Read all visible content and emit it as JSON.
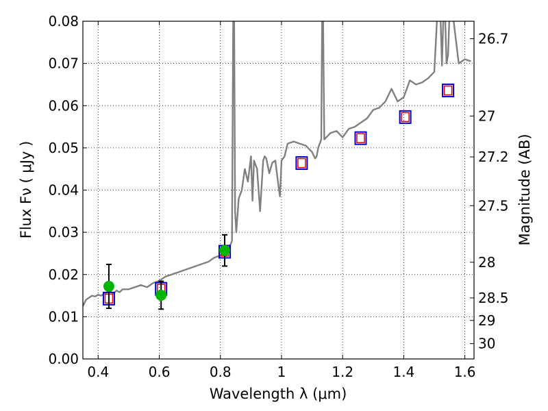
{
  "chart_data": {
    "type": "scatter",
    "xlabel": "Wavelength  λ (μm)",
    "ylabel": "Flux  Fν  ( μJy )",
    "y2label": "Magnitude (AB)",
    "xlim": [
      0.35,
      1.63
    ],
    "ylim": [
      0.0,
      0.08
    ],
    "grid": true,
    "x_ticks": [
      0.4,
      0.6,
      0.8,
      1.0,
      1.2,
      1.4,
      1.6
    ],
    "x_tick_labels": [
      "0.4",
      "0.6",
      "0.8",
      "1",
      "1.2",
      "1.4",
      "1.6"
    ],
    "y_ticks": [
      0.0,
      0.01,
      0.02,
      0.03,
      0.04,
      0.05,
      0.06,
      0.07,
      0.08
    ],
    "y_tick_labels": [
      "0.00",
      "0.01",
      "0.02",
      "0.03",
      "0.04",
      "0.05",
      "0.06",
      "0.07",
      "0.08"
    ],
    "y2_ticks": [
      26.7,
      27,
      27.2,
      27.5,
      28,
      28.5,
      29,
      30
    ],
    "y2_tick_labels": [
      "26.7",
      "27",
      "27.2",
      "27.5",
      "28",
      "28.5",
      "29",
      "30"
    ],
    "colors": {
      "model": "#808080",
      "observed": "#00b400",
      "model_phot_outer": "#0000cc",
      "model_phot_inner": "#dd0000",
      "errorbar": "#000000"
    },
    "series": [
      {
        "kind": "line",
        "x": [
          0.35,
          0.36,
          0.37,
          0.38,
          0.39,
          0.4,
          0.41,
          0.42,
          0.43,
          0.44,
          0.45,
          0.46,
          0.47,
          0.48,
          0.5,
          0.52,
          0.54,
          0.56,
          0.58,
          0.6,
          0.62,
          0.64,
          0.66,
          0.68,
          0.7,
          0.72,
          0.74,
          0.76,
          0.78,
          0.8,
          0.81,
          0.82,
          0.83,
          0.838,
          0.842,
          0.845,
          0.848,
          0.852,
          0.86,
          0.87,
          0.88,
          0.89,
          0.9,
          0.905,
          0.91,
          0.92,
          0.93,
          0.94,
          0.945,
          0.95,
          0.96,
          0.97,
          0.98,
          0.99,
          0.995,
          1.0,
          1.01,
          1.02,
          1.04,
          1.06,
          1.08,
          1.1,
          1.11,
          1.115,
          1.12,
          1.13,
          1.133,
          1.136,
          1.14,
          1.16,
          1.18,
          1.2,
          1.22,
          1.24,
          1.26,
          1.28,
          1.3,
          1.32,
          1.34,
          1.36,
          1.38,
          1.4,
          1.42,
          1.44,
          1.46,
          1.48,
          1.5,
          1.51,
          1.52,
          1.525,
          1.53,
          1.535,
          1.54,
          1.545,
          1.55,
          1.56,
          1.58,
          1.6,
          1.62
        ],
        "y": [
          0.0125,
          0.014,
          0.0145,
          0.015,
          0.0148,
          0.0152,
          0.015,
          0.0155,
          0.0158,
          0.016,
          0.0155,
          0.0162,
          0.0158,
          0.0165,
          0.0165,
          0.017,
          0.0175,
          0.017,
          0.018,
          0.0185,
          0.0195,
          0.02,
          0.0205,
          0.021,
          0.0215,
          0.022,
          0.0225,
          0.023,
          0.024,
          0.0245,
          0.025,
          0.0258,
          0.0265,
          0.028,
          0.082,
          0.082,
          0.035,
          0.03,
          0.038,
          0.04,
          0.045,
          0.042,
          0.048,
          0.0375,
          0.047,
          0.045,
          0.035,
          0.047,
          0.048,
          0.0475,
          0.044,
          0.0465,
          0.047,
          0.041,
          0.0385,
          0.047,
          0.048,
          0.051,
          0.0515,
          0.051,
          0.0505,
          0.049,
          0.0475,
          0.048,
          0.05,
          0.052,
          0.082,
          0.082,
          0.052,
          0.0535,
          0.054,
          0.0525,
          0.0545,
          0.055,
          0.056,
          0.057,
          0.059,
          0.0595,
          0.061,
          0.064,
          0.061,
          0.062,
          0.066,
          0.065,
          0.0655,
          0.0665,
          0.068,
          0.082,
          0.082,
          0.0695,
          0.082,
          0.082,
          0.07,
          0.072,
          0.082,
          0.082,
          0.07,
          0.071,
          0.0705
        ]
      },
      {
        "kind": "model_photometry",
        "x": [
          0.435,
          0.606,
          0.814,
          1.066,
          1.259,
          1.405,
          1.545
        ],
        "y": [
          0.0143,
          0.0166,
          0.0254,
          0.0464,
          0.0523,
          0.0573,
          0.0636
        ]
      },
      {
        "kind": "observed",
        "x": [
          0.435,
          0.606,
          0.814
        ],
        "y": [
          0.0172,
          0.0151,
          0.0257
        ],
        "yerr": [
          0.0052,
          0.0033,
          0.0037
        ]
      }
    ]
  }
}
